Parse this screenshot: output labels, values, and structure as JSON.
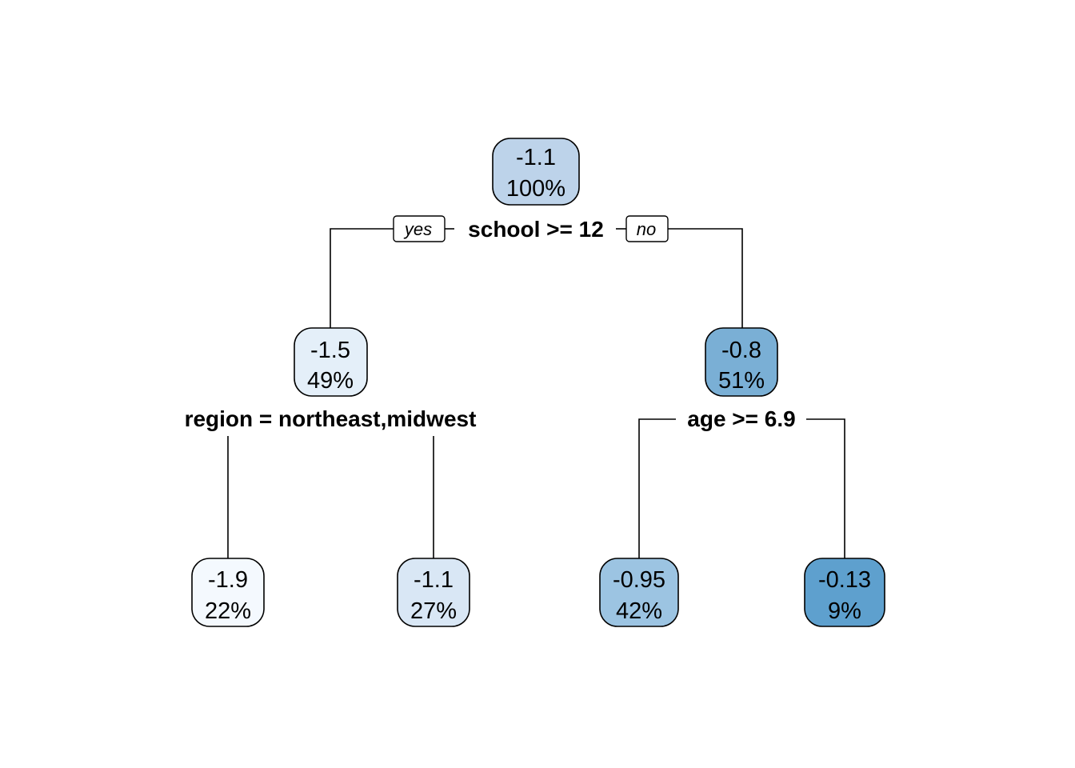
{
  "tree": {
    "root": {
      "value": "-1.1",
      "percent": "100%",
      "color": "#bdd3ea"
    },
    "root_split": {
      "label": "school >= 12",
      "yes_label": "yes",
      "no_label": "no"
    },
    "left": {
      "value": "-1.5",
      "percent": "49%",
      "color": "#e4eff9"
    },
    "left_split": {
      "label": "region = northeast,midwest"
    },
    "right": {
      "value": "-0.8",
      "percent": "51%",
      "color": "#7aafd5"
    },
    "right_split": {
      "label": "age >= 6.9"
    },
    "leaves": [
      {
        "value": "-1.9",
        "percent": "22%",
        "color": "#f4f9fe"
      },
      {
        "value": "-1.1",
        "percent": "27%",
        "color": "#d9e7f5"
      },
      {
        "value": "-0.95",
        "percent": "42%",
        "color": "#9cc4e2"
      },
      {
        "value": "-0.13",
        "percent": "9%",
        "color": "#5ea0ce"
      }
    ]
  }
}
